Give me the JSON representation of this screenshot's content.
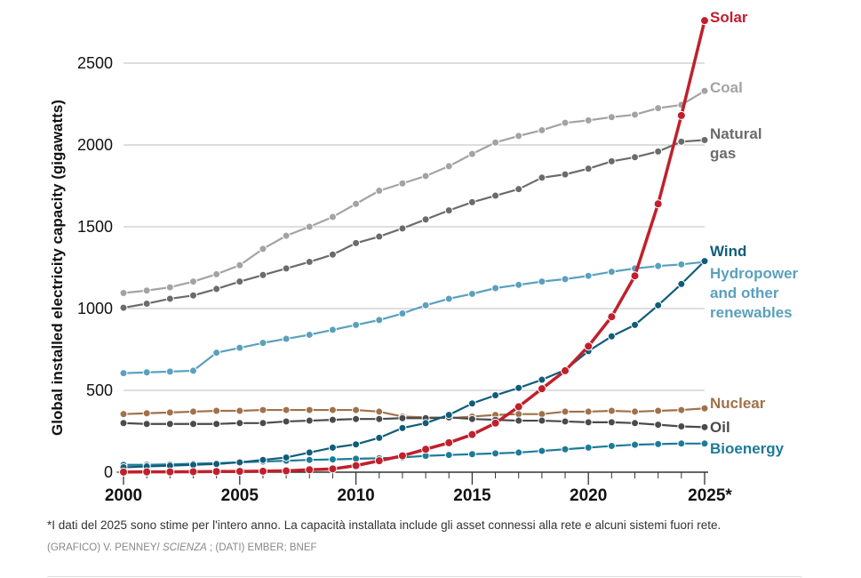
{
  "chart_data": {
    "type": "line",
    "title": "",
    "xlabel": "",
    "ylabel": "Global installed electricity capacity (gigawatts)",
    "ylim": [
      0,
      2800
    ],
    "xlim": [
      2000,
      2025
    ],
    "grid": true,
    "yticks": [
      0,
      500,
      1000,
      1500,
      2000,
      2500
    ],
    "xticks": [
      2000,
      2005,
      2010,
      2015,
      2020,
      2025
    ],
    "xtick_labels": [
      "2000",
      "2005",
      "2010",
      "2015",
      "2020",
      "2025*"
    ],
    "x": [
      2000,
      2001,
      2002,
      2003,
      2004,
      2005,
      2006,
      2007,
      2008,
      2009,
      2010,
      2011,
      2012,
      2013,
      2014,
      2015,
      2016,
      2017,
      2018,
      2019,
      2020,
      2021,
      2022,
      2023,
      2024,
      2025
    ],
    "legend": "direct labels at line ends (right)",
    "series": [
      {
        "name": "Coal",
        "label_lines": [
          "Coal"
        ],
        "color": "#a3a3a3",
        "values": [
          1095,
          1110,
          1130,
          1165,
          1210,
          1265,
          1365,
          1445,
          1500,
          1560,
          1640,
          1720,
          1765,
          1810,
          1870,
          1945,
          2015,
          2055,
          2090,
          2135,
          2150,
          2170,
          2185,
          2225,
          2245,
          2330
        ]
      },
      {
        "name": "Natural gas",
        "label_lines": [
          "Natural",
          "gas"
        ],
        "color": "#6b6b6b",
        "values": [
          1005,
          1030,
          1060,
          1080,
          1120,
          1165,
          1205,
          1245,
          1285,
          1330,
          1400,
          1440,
          1490,
          1545,
          1600,
          1650,
          1690,
          1730,
          1800,
          1820,
          1855,
          1900,
          1925,
          1960,
          2020,
          2030
        ]
      },
      {
        "name": "Hydropower and other renewables",
        "label_lines": [
          "Hydropower",
          "and other",
          "renewables"
        ],
        "color": "#5aa0bd",
        "values": [
          605,
          610,
          615,
          620,
          730,
          760,
          790,
          815,
          840,
          870,
          900,
          930,
          970,
          1020,
          1060,
          1090,
          1125,
          1145,
          1165,
          1180,
          1200,
          1225,
          1245,
          1260,
          1270,
          1285
        ]
      },
      {
        "name": "Nuclear",
        "label_lines": [
          "Nuclear"
        ],
        "color": "#a0714a",
        "values": [
          355,
          360,
          365,
          370,
          375,
          375,
          380,
          380,
          380,
          380,
          380,
          370,
          340,
          335,
          330,
          340,
          350,
          355,
          355,
          370,
          370,
          375,
          370,
          375,
          380,
          390
        ]
      },
      {
        "name": "Oil",
        "label_lines": [
          "Oil"
        ],
        "color": "#4a4a4a",
        "values": [
          300,
          295,
          295,
          295,
          295,
          300,
          300,
          310,
          315,
          320,
          325,
          325,
          330,
          330,
          335,
          325,
          320,
          315,
          315,
          310,
          305,
          305,
          300,
          290,
          280,
          275
        ]
      },
      {
        "name": "Bioenergy",
        "label_lines": [
          "Bioenergy"
        ],
        "color": "#1e7b98",
        "values": [
          45,
          45,
          48,
          52,
          55,
          60,
          65,
          70,
          75,
          78,
          82,
          85,
          90,
          100,
          105,
          110,
          115,
          120,
          130,
          140,
          150,
          160,
          168,
          172,
          175,
          175
        ]
      },
      {
        "name": "Wind",
        "label_lines": [
          "Wind"
        ],
        "color": "#0f5d7a",
        "values": [
          30,
          35,
          40,
          45,
          50,
          60,
          75,
          90,
          120,
          150,
          170,
          210,
          270,
          300,
          350,
          420,
          470,
          515,
          565,
          625,
          740,
          830,
          900,
          1020,
          1150,
          1290
        ]
      },
      {
        "name": "Solar",
        "label_lines": [
          "Solar"
        ],
        "color": "#c0202c",
        "values": [
          1,
          2,
          2,
          3,
          4,
          5,
          6,
          8,
          15,
          20,
          40,
          70,
          100,
          140,
          180,
          230,
          300,
          400,
          510,
          620,
          770,
          950,
          1200,
          1640,
          2180,
          2760
        ]
      }
    ],
    "annotations": []
  },
  "footnote": "*I dati del 2025 sono stime per l'intero anno. La capacità installata include gli asset connessi alla rete e alcuni sistemi fuori rete.",
  "credit": {
    "prefix": "(GRAFICO) V. PENNEY/ ",
    "publication": "SCIENZA",
    "suffix": " ; (DATI) EMBER; BNEF"
  }
}
